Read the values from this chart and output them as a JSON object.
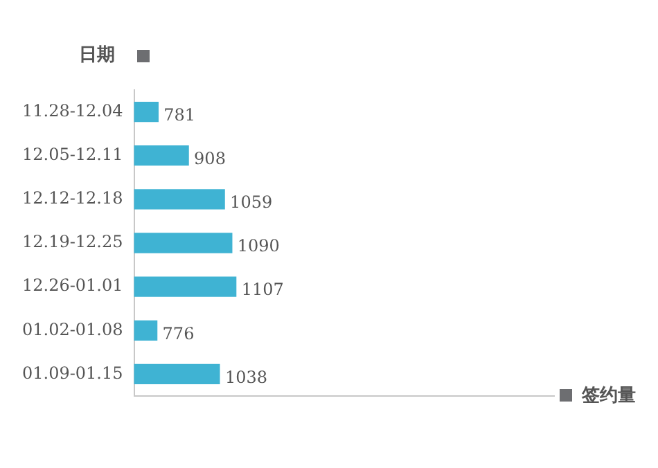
{
  "chart_data": {
    "type": "bar",
    "orientation": "horizontal",
    "xlabel": "签约量",
    "ylabel": "日期",
    "categories": [
      "11.28-12.04",
      "12.05-12.11",
      "12.12-12.18",
      "12.19-12.25",
      "12.26-01.01",
      "01.02-01.08",
      "01.09-01.15"
    ],
    "values": [
      781,
      908,
      1059,
      1090,
      1107,
      776,
      1038
    ],
    "color": "#3fb3d3",
    "data_labels": true,
    "xlim": [
      680,
      2440
    ],
    "tick_labels": "y",
    "grid": false,
    "legend": false
  }
}
